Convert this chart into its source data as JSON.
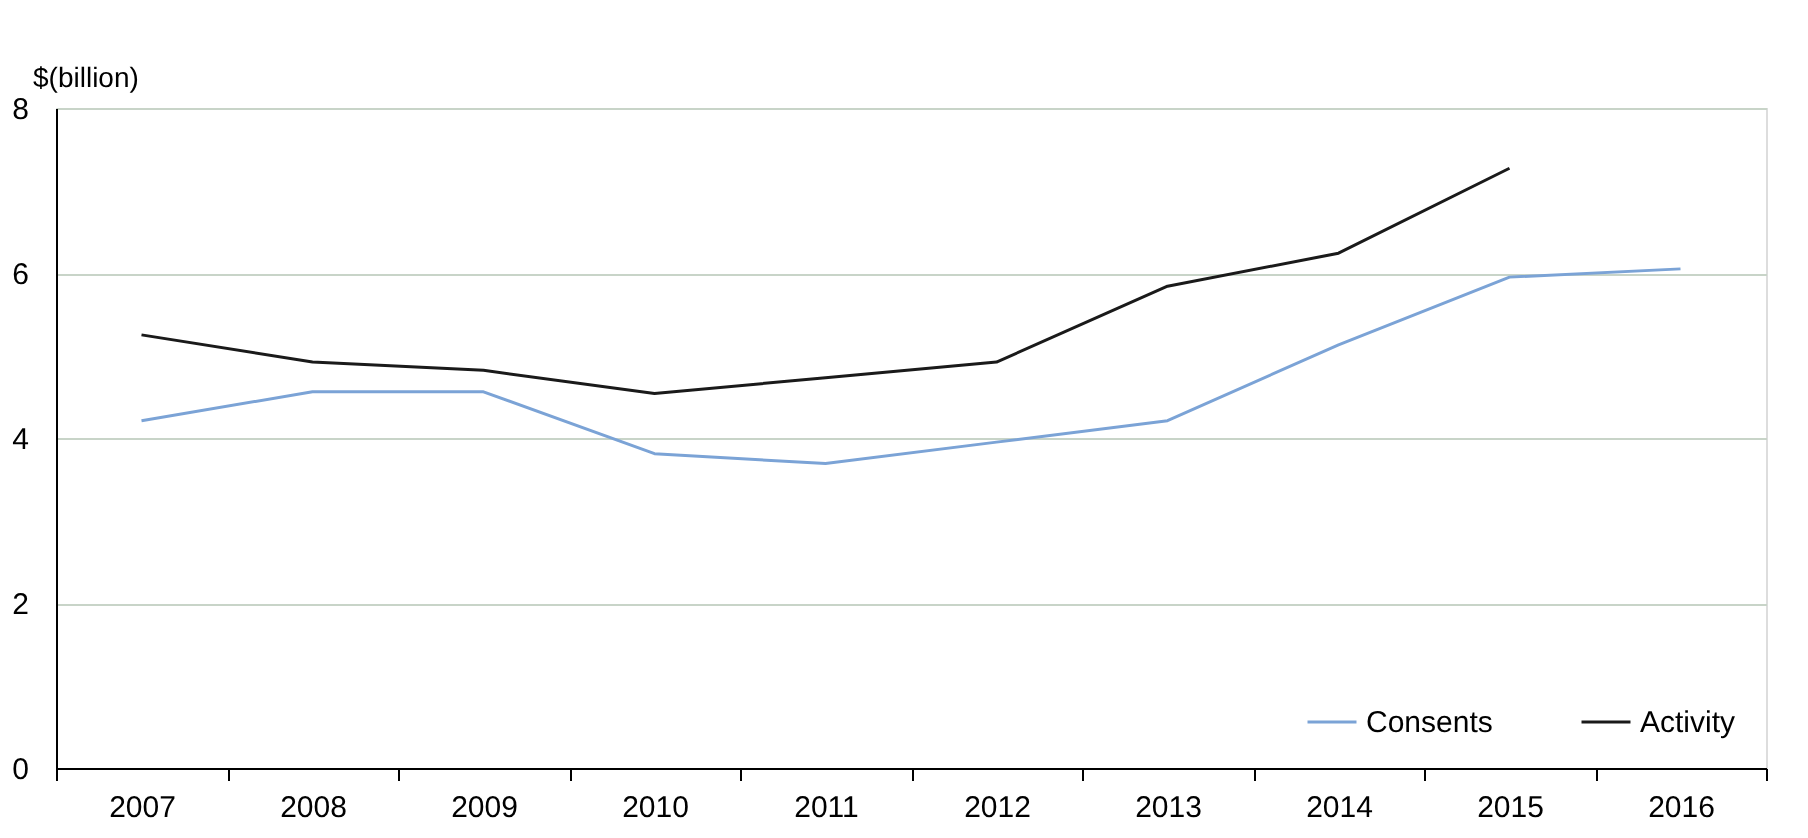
{
  "chart_data": {
    "type": "line",
    "ylabel": "$(billion)",
    "categories": [
      "2007",
      "2008",
      "2009",
      "2010",
      "2011",
      "2012",
      "2013",
      "2014",
      "2015",
      "2016"
    ],
    "series": [
      {
        "name": "Consents",
        "color": "#7ba3d6",
        "values": [
          4.21,
          4.56,
          4.56,
          3.81,
          3.69,
          3.95,
          4.21,
          5.13,
          5.95,
          6.05
        ]
      },
      {
        "name": "Activity",
        "color": "#1a1a1a",
        "values": [
          5.25,
          4.92,
          4.82,
          4.54,
          4.73,
          4.92,
          5.84,
          6.24,
          7.27,
          null
        ]
      }
    ],
    "ylim": [
      0,
      8
    ],
    "yticks": [
      0,
      2,
      4,
      6,
      8
    ],
    "grid": "y",
    "legend": "bottom right",
    "marker": "none",
    "line_style": "solid"
  }
}
